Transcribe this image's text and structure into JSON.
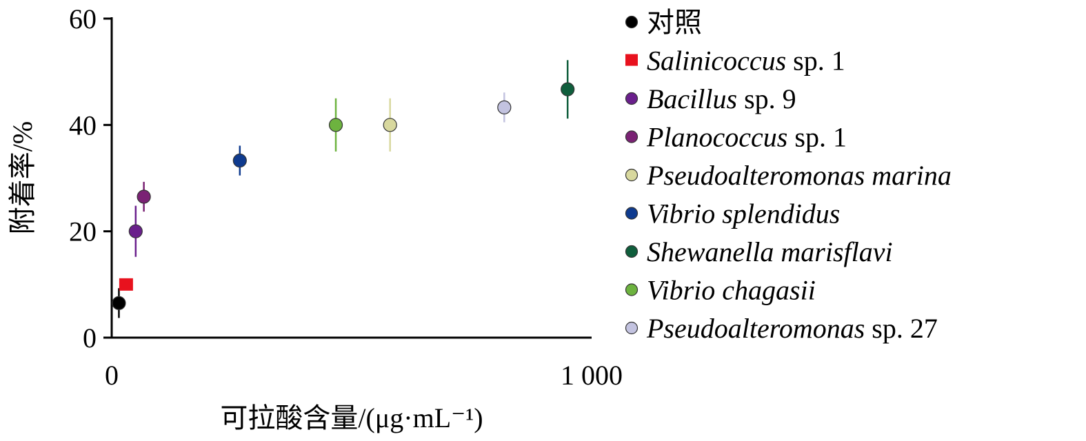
{
  "chart_data": {
    "type": "scatter",
    "title": "",
    "xlabel": "可拉酸含量/(μg·mL⁻¹)",
    "ylabel": "附着率/%",
    "xlim": [
      0,
      1000
    ],
    "ylim": [
      0,
      60
    ],
    "x_ticks": [
      {
        "value": 0,
        "label": "0"
      },
      {
        "value": 1000,
        "label": "1 000"
      }
    ],
    "y_ticks": [
      {
        "value": 0,
        "label": "0"
      },
      {
        "value": 20,
        "label": "20"
      },
      {
        "value": 40,
        "label": "40"
      },
      {
        "value": 60,
        "label": "60"
      }
    ],
    "grid": false,
    "legend_position": "right",
    "series": [
      {
        "name": "对照",
        "name_italic": "",
        "name_suffix": "",
        "marker": "circle",
        "color": "#000000",
        "x": 15,
        "y": 6.5,
        "err": 2.8
      },
      {
        "name": "Salinicoccus sp. 1",
        "name_italic": "Salinicoccus",
        "name_suffix": " sp. 1",
        "marker": "square",
        "color": "#e8121e",
        "x": 30,
        "y": 10,
        "err": 0
      },
      {
        "name": "Bacillus sp. 9",
        "name_italic": "Bacillus",
        "name_suffix": " sp. 9",
        "marker": "circle",
        "color": "#6a1f8c",
        "x": 50,
        "y": 20,
        "err": 4.8
      },
      {
        "name": "Planococcus sp. 1",
        "name_italic": "Planococcus",
        "name_suffix": " sp. 1",
        "marker": "circle",
        "color": "#7a2274",
        "x": 67,
        "y": 26.5,
        "err": 2.8
      },
      {
        "name": "Pseudoalteromonas marina",
        "name_italic": "Pseudoalteromonas marina",
        "name_suffix": "",
        "marker": "circle",
        "color": "#d8d89e",
        "x": 580,
        "y": 40,
        "err": 5
      },
      {
        "name": "Vibrio splendidus",
        "name_italic": "Vibrio splendidus",
        "name_suffix": "",
        "marker": "circle",
        "color": "#0f3b8f",
        "x": 267,
        "y": 33.3,
        "err": 2.8
      },
      {
        "name": "Shewanella marisflavi",
        "name_italic": "Shewanella marisflavi",
        "name_suffix": "",
        "marker": "circle",
        "color": "#0f5e3c",
        "x": 950,
        "y": 46.7,
        "err": 5.5
      },
      {
        "name": "Vibrio chagasii",
        "name_italic": "Vibrio chagasii",
        "name_suffix": "",
        "marker": "circle",
        "color": "#6db33f",
        "x": 467,
        "y": 40,
        "err": 5
      },
      {
        "name": "Pseudoalteromonas sp. 27",
        "name_italic": "Pseudoalteromonas",
        "name_suffix": " sp. 27",
        "marker": "circle",
        "color": "#c3c3e0",
        "x": 818,
        "y": 43.3,
        "err": 2.8
      }
    ]
  }
}
